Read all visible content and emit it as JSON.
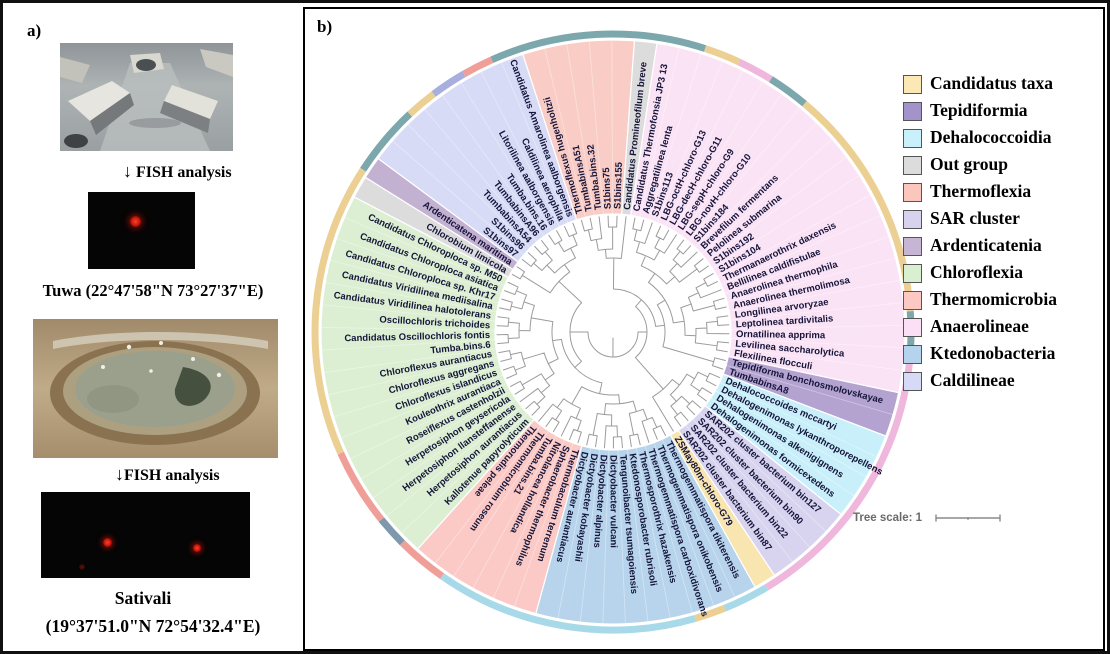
{
  "panel_a": {
    "label": "a)",
    "arrow": "↓",
    "fish_label_1": "FISH analysis",
    "site_1": "Tuwa (22°47'58\"N 73°27'37\"E)",
    "fish_label_2": "FISH analysis",
    "site_2_name": "Sativali",
    "site_2_coords": "(19°37'51.0\"N 72°54'32.4\"E)"
  },
  "panel_b": {
    "label": "b)",
    "tree_scale_label": "Tree scale: 1",
    "legend": [
      {
        "label": "Candidatus taxa",
        "color": "#fbe8b5"
      },
      {
        "label": "Tepidiformia",
        "color": "#a393cb"
      },
      {
        "label": "Dehalococcoidia",
        "color": "#c9f1fb"
      },
      {
        "label": "Out group",
        "color": "#dcdcdc"
      },
      {
        "label": "Thermoflexia",
        "color": "#fbc6bd"
      },
      {
        "label": "SAR cluster",
        "color": "#d7d3ee"
      },
      {
        "label": "Ardenticatenia",
        "color": "#c7b5d6"
      },
      {
        "label": "Chloroflexia",
        "color": "#d9efcf"
      },
      {
        "label": "Thermomicrobia",
        "color": "#fcc8c4"
      },
      {
        "label": "Anaerolineae",
        "color": "#fbdff4"
      },
      {
        "label": "Ktedonobacteria",
        "color": "#b5d3ec"
      },
      {
        "label": "Caldilineae",
        "color": "#d6daf6"
      }
    ],
    "chart_data": {
      "type": "circular-dendrogram",
      "title": "Phylogenetic tree of Chloroflexi classes with metagenome bins",
      "tree_scale": 1,
      "groups": [
        {
          "name": "Thermoflexia",
          "color": "#f9cdc6",
          "leaves": [
            "Thermoflexus hugenholtzii",
            "TumbabinsA51",
            "Tumba.bins.32",
            "S1bins75",
            "S1bins155"
          ]
        },
        {
          "name": "Out group",
          "color": "#dcdcdc",
          "leaves": [
            "Candidatus Promineofilum breve"
          ]
        },
        {
          "name": "Anaerolineae",
          "color": "#fbe3f6",
          "leaves": [
            "Candidatus Thermofonsia JP3 13",
            "Aggregatilinea lenta",
            "S1bins113",
            "LBG-octH-chloro-G13",
            "LBG-decH-chloro-G11",
            "LBG-sepH-chloro-G9",
            "LBG-novH-chloro-G10",
            "S1bins184",
            "Brevefilum fermentans",
            "Pelolinea submarina",
            "S1bins192",
            "S1bins104",
            "Thermanaerothrix daxensis",
            "Bellilinea caldifistulae",
            "Anaerolinea thermophila",
            "Anaerolinea thermolimosa",
            "Longilinea arvoryzae",
            "Leptolinea tardivitalis",
            "Ornatilinea apprima",
            "Levilinea saccharolytica",
            "Flexilinea flocculi"
          ]
        },
        {
          "name": "Tepidiformia",
          "color": "#b4a3d0",
          "leaves": [
            "Tepidiforma bonchosmolovskayae",
            "TumbabinsA8"
          ]
        },
        {
          "name": "Dehalococcoidia",
          "color": "#c9f0fa",
          "leaves": [
            "Dehalococcoides mccartyi",
            "Dehalogenimonas lykanthroporepellens",
            "Dehalogenimonas alkenigignens",
            "Dehalogenimonas formicexedens"
          ]
        },
        {
          "name": "SAR cluster",
          "color": "#d8d4ef",
          "leaves": [
            "SAR202 cluster bacterium bin127",
            "SAR202 cluster bacterium bin90",
            "SAR202 cluster bacterium bin22",
            "SAR202 cluster bacterium bin87"
          ]
        },
        {
          "name": "Candidatus taxa",
          "color": "#f8e5b0",
          "leaves": [
            "ZSMay80m-chloro-G79"
          ]
        },
        {
          "name": "Ktedonobacteria",
          "color": "#b7d4ec",
          "leaves": [
            "Thermogemmatispora tikiterensis",
            "Thermogemmatispora onikobensis",
            "Thermogemmatispora carboxidivorans",
            "Thermosporothrix hazakensis",
            "Ktedonosporobacter rubrisoli",
            "Tengunoibacter tsumagoiensis",
            "Dictyobacter vulcani",
            "Dictyobacter alpinus",
            "Dictyobacter kobayashii",
            "Dictyobacter aurantiacus"
          ]
        },
        {
          "name": "Thermomicrobia",
          "color": "#fbcac6",
          "leaves": [
            "Thermobaculum terrenum",
            "Sphaerobacter thermophilus",
            "Nitrolancea hollandica",
            "Tumba.bins.21",
            "Thermomicrobium roseum",
            "Thermorudis peleae"
          ]
        },
        {
          "name": "Chloroflexia",
          "color": "#dcefd3",
          "leaves": [
            "Kallotenue papyrolyticum",
            "Herpetosiphon aurantiacus",
            "Herpetosiphon llansteffanense",
            "Herpetosiphon geysericola",
            "Roseiflexus castenholzii",
            "Kouleothrix aurantiaca",
            "Chloroflexus islandicus",
            "Chloroflexus aggregans",
            "Chloroflexus aurantiacus",
            "Tumba.bins.6",
            "Candidatus Oscillochloris fontis",
            "Oscillochloris trichoides",
            "Candidatus Viridilinea halotolerans",
            "Candidatus Viridilinea mediisalina",
            "Candidatus Chloroploca sp. Khr17",
            "Candidatus Chloroploca asiatica",
            "Candidatus Chloroploca sp. M50"
          ]
        },
        {
          "name": "Out group",
          "color": "#dcdcdc",
          "leaves": [
            "Chlorobium limicola"
          ]
        },
        {
          "name": "Ardenticatenia",
          "color": "#c3b1d2",
          "leaves": [
            "Ardenticatena maritima"
          ]
        },
        {
          "name": "Caldilineae",
          "color": "#d7dbf6",
          "leaves": [
            "S1bins97",
            "S1bins96",
            "TumbabinsA54",
            "TumbabinsA96",
            "Tumba.bins.16",
            "Litorilinea aalborgensis",
            "Caldilinea aerophila",
            "Candidatus Amarolinea aalborgensis"
          ]
        }
      ],
      "ring": [
        {
          "a0": -24,
          "a1": 18,
          "c": "#7ba7ad"
        },
        {
          "a0": 18,
          "a1": 25,
          "c": "#eccf92"
        },
        {
          "a0": 25,
          "a1": 32,
          "c": "#f0b7dd"
        },
        {
          "a0": 32,
          "a1": 40,
          "c": "#7ba7ad"
        },
        {
          "a0": 40,
          "a1": 86,
          "c": "#eccf92"
        },
        {
          "a0": 86,
          "a1": 93,
          "c": "#7ba7ad"
        },
        {
          "a0": 93,
          "a1": 149,
          "c": "#f0b7dd"
        },
        {
          "a0": 149,
          "a1": 158,
          "c": "#a8d9e8"
        },
        {
          "a0": 158,
          "a1": 164,
          "c": "#eccf92"
        },
        {
          "a0": 164,
          "a1": 215,
          "c": "#a8d9e8"
        },
        {
          "a0": 215,
          "a1": 225,
          "c": "#ef9f98"
        },
        {
          "a0": 225,
          "a1": 231,
          "c": "#7e99ad"
        },
        {
          "a0": 231,
          "a1": 246,
          "c": "#ef9f98"
        },
        {
          "a0": 246,
          "a1": 303,
          "c": "#eccf92"
        },
        {
          "a0": 303,
          "a1": 317,
          "c": "#7ba7ad"
        },
        {
          "a0": 317,
          "a1": 323,
          "c": "#eccf92"
        },
        {
          "a0": 323,
          "a1": 330,
          "c": "#a8aedd"
        },
        {
          "a0": 330,
          "a1": 336,
          "c": "#ef9f98"
        }
      ]
    }
  }
}
